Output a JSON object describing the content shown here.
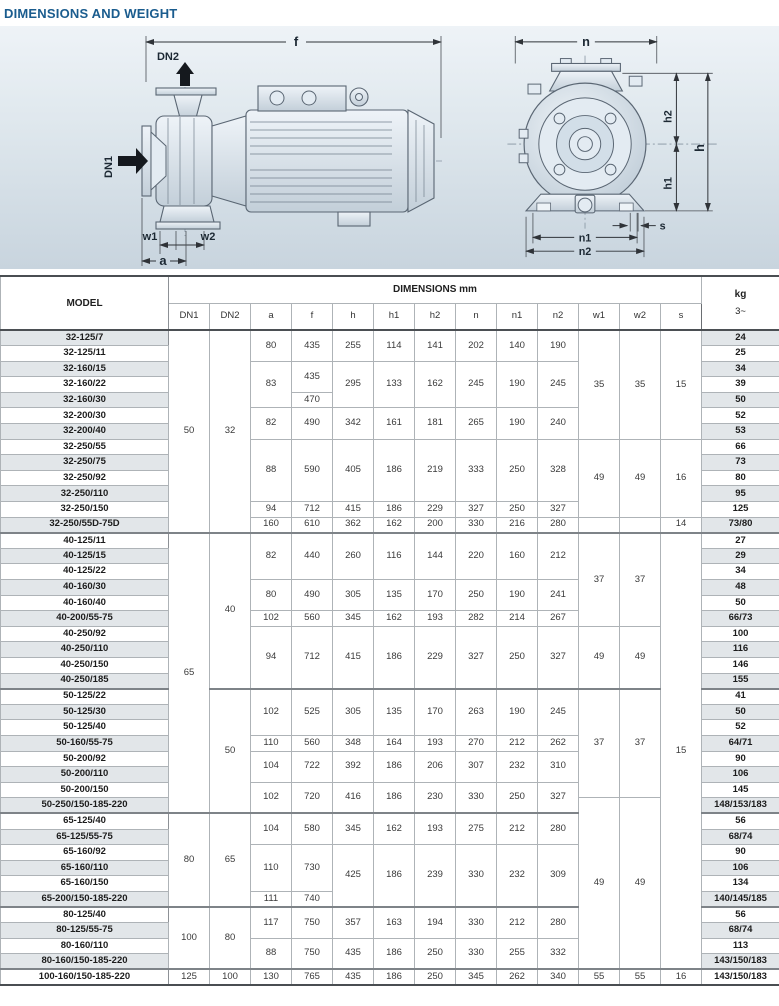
{
  "page": {
    "title": "DIMENSIONS AND WEIGHT"
  },
  "colors": {
    "title_accent": "#1a5c8e",
    "row_stripe": "#e2e6e9",
    "panel_top": "#eef3f7",
    "panel_bottom": "#c8d4de"
  },
  "diagram": {
    "side": {
      "f": "f",
      "DN2": "DN2",
      "DN1": "DN1",
      "w1": "w1",
      "w2": "w2",
      "a": "a"
    },
    "front": {
      "n": "n",
      "h2": "h2",
      "h": "h",
      "h1": "h1",
      "s": "s",
      "n1": "n1",
      "n2": "n2"
    }
  },
  "table": {
    "headers": {
      "model": "MODEL",
      "dimensions": "DIMENSIONS mm",
      "kg": "kg",
      "phase": "3~",
      "cols": [
        "DN1",
        "DN2",
        "a",
        "f",
        "h",
        "h1",
        "h2",
        "n",
        "n1",
        "n2",
        "w1",
        "w2",
        "s"
      ]
    },
    "rows": [
      {
        "model": "32-125/7",
        "kg": "24",
        "dims": [
          [
            "50",
            13
          ],
          [
            "32",
            13
          ],
          [
            "80",
            2
          ],
          [
            "435",
            2
          ],
          [
            "255",
            2
          ],
          [
            "114",
            2
          ],
          [
            "141",
            2
          ],
          [
            "202",
            2
          ],
          [
            "140",
            2
          ],
          [
            "190",
            2
          ],
          [
            "35",
            7
          ],
          [
            "35",
            7
          ],
          [
            "15",
            7
          ]
        ]
      },
      {
        "model": "32-125/11",
        "kg": "25",
        "dims": []
      },
      {
        "model": "32-160/15",
        "kg": "34",
        "dims": [
          [
            "83",
            3
          ],
          [
            "435",
            2
          ],
          [
            "295",
            3
          ],
          [
            "133",
            3
          ],
          [
            "162",
            3
          ],
          [
            "245",
            3
          ],
          [
            "190",
            3
          ],
          [
            "245",
            3
          ]
        ]
      },
      {
        "model": "32-160/22",
        "kg": "39",
        "dims": []
      },
      {
        "model": "32-160/30",
        "kg": "50",
        "dims": [
          [
            "470",
            1
          ]
        ]
      },
      {
        "model": "32-200/30",
        "kg": "52",
        "dims": [
          [
            "82",
            2
          ],
          [
            "490",
            2
          ],
          [
            "342",
            2
          ],
          [
            "161",
            2
          ],
          [
            "181",
            2
          ],
          [
            "265",
            2
          ],
          [
            "190",
            2
          ],
          [
            "240",
            2
          ]
        ]
      },
      {
        "model": "32-200/40",
        "kg": "53",
        "dims": []
      },
      {
        "model": "32-250/55",
        "kg": "66",
        "dims": [
          [
            "88",
            4
          ],
          [
            "590",
            4
          ],
          [
            "405",
            4
          ],
          [
            "186",
            4
          ],
          [
            "219",
            4
          ],
          [
            "333",
            4
          ],
          [
            "250",
            4
          ],
          [
            "328",
            4
          ],
          [
            "49",
            5
          ],
          [
            "49",
            5
          ],
          [
            "16",
            5
          ]
        ]
      },
      {
        "model": "32-250/75",
        "kg": "73",
        "dims": []
      },
      {
        "model": "32-250/92",
        "kg": "80",
        "dims": []
      },
      {
        "model": "32-250/110",
        "kg": "95",
        "dims": []
      },
      {
        "model": "32-250/150",
        "kg": "125",
        "dims": [
          [
            "94",
            1
          ],
          [
            "712",
            1
          ],
          [
            "415",
            1
          ],
          [
            "186",
            1
          ],
          [
            "229",
            1
          ],
          [
            "327",
            1
          ],
          [
            "250",
            1
          ],
          [
            "327",
            1
          ]
        ]
      },
      {
        "model": "32-250/55D-75D",
        "kg": "73/80",
        "dims": [
          [
            "160",
            1
          ],
          [
            "610",
            1
          ],
          [
            "362",
            1
          ],
          [
            "162",
            1
          ],
          [
            "200",
            1
          ],
          [
            "330",
            1
          ],
          [
            "216",
            1
          ],
          [
            "280",
            1
          ],
          [
            "",
            1
          ],
          [
            "",
            1
          ],
          [
            "14",
            1
          ]
        ]
      },
      {
        "model": "40-125/11",
        "kg": "27",
        "sep": true,
        "dims": [
          [
            "65",
            18
          ],
          [
            "40",
            10
          ],
          [
            "82",
            3
          ],
          [
            "440",
            3
          ],
          [
            "260",
            3
          ],
          [
            "116",
            3
          ],
          [
            "144",
            3
          ],
          [
            "220",
            3
          ],
          [
            "160",
            3
          ],
          [
            "212",
            3
          ],
          [
            "37",
            6
          ],
          [
            "37",
            6
          ],
          [
            "15",
            28
          ]
        ]
      },
      {
        "model": "40-125/15",
        "kg": "29",
        "dims": []
      },
      {
        "model": "40-125/22",
        "kg": "34",
        "dims": []
      },
      {
        "model": "40-160/30",
        "kg": "48",
        "dims": [
          [
            "80",
            2
          ],
          [
            "490",
            2
          ],
          [
            "305",
            2
          ],
          [
            "135",
            2
          ],
          [
            "170",
            2
          ],
          [
            "250",
            2
          ],
          [
            "190",
            2
          ],
          [
            "241",
            2
          ]
        ]
      },
      {
        "model": "40-160/40",
        "kg": "50",
        "dims": []
      },
      {
        "model": "40-200/55-75",
        "kg": "66/73",
        "dims": [
          [
            "102",
            1
          ],
          [
            "560",
            1
          ],
          [
            "345",
            1
          ],
          [
            "162",
            1
          ],
          [
            "193",
            1
          ],
          [
            "282",
            1
          ],
          [
            "214",
            1
          ],
          [
            "267",
            1
          ]
        ]
      },
      {
        "model": "40-250/92",
        "kg": "100",
        "dims": [
          [
            "94",
            4
          ],
          [
            "712",
            4
          ],
          [
            "415",
            4
          ],
          [
            "186",
            4
          ],
          [
            "229",
            4
          ],
          [
            "327",
            4
          ],
          [
            "250",
            4
          ],
          [
            "327",
            4
          ],
          [
            "49",
            4
          ],
          [
            "49",
            4
          ]
        ]
      },
      {
        "model": "40-250/110",
        "kg": "116",
        "dims": []
      },
      {
        "model": "40-250/150",
        "kg": "146",
        "dims": []
      },
      {
        "model": "40-250/185",
        "kg": "155",
        "dims": []
      },
      {
        "model": "50-125/22",
        "kg": "41",
        "sep": true,
        "dims": [
          [
            "50",
            8
          ],
          [
            "102",
            3
          ],
          [
            "525",
            3
          ],
          [
            "305",
            3
          ],
          [
            "135",
            3
          ],
          [
            "170",
            3
          ],
          [
            "263",
            3
          ],
          [
            "190",
            3
          ],
          [
            "245",
            3
          ],
          [
            "37",
            7
          ],
          [
            "37",
            7
          ]
        ]
      },
      {
        "model": "50-125/30",
        "kg": "50",
        "dims": []
      },
      {
        "model": "50-125/40",
        "kg": "52",
        "dims": []
      },
      {
        "model": "50-160/55-75",
        "kg": "64/71",
        "dims": [
          [
            "110",
            1
          ],
          [
            "560",
            1
          ],
          [
            "348",
            1
          ],
          [
            "164",
            1
          ],
          [
            "193",
            1
          ],
          [
            "270",
            1
          ],
          [
            "212",
            1
          ],
          [
            "262",
            1
          ]
        ]
      },
      {
        "model": "50-200/92",
        "kg": "90",
        "dims": [
          [
            "104",
            2
          ],
          [
            "722",
            2
          ],
          [
            "392",
            2
          ],
          [
            "186",
            2
          ],
          [
            "206",
            2
          ],
          [
            "307",
            2
          ],
          [
            "232",
            2
          ],
          [
            "310",
            2
          ]
        ]
      },
      {
        "model": "50-200/110",
        "kg": "106",
        "dims": []
      },
      {
        "model": "50-200/150",
        "kg": "145",
        "dims": [
          [
            "102",
            2
          ],
          [
            "720",
            2
          ],
          [
            "416",
            2
          ],
          [
            "186",
            2
          ],
          [
            "230",
            2
          ],
          [
            "330",
            2
          ],
          [
            "250",
            2
          ],
          [
            "327",
            2
          ]
        ]
      },
      {
        "model": "50-250/150-185-220",
        "kg": "148/153/183",
        "dims": [
          [
            "49",
            11
          ],
          [
            "49",
            11
          ]
        ]
      },
      {
        "model": "65-125/40",
        "kg": "56",
        "sep": true,
        "dims": [
          [
            "80",
            6
          ],
          [
            "65",
            6
          ],
          [
            "104",
            2
          ],
          [
            "580",
            2
          ],
          [
            "345",
            2
          ],
          [
            "162",
            2
          ],
          [
            "193",
            2
          ],
          [
            "275",
            2
          ],
          [
            "212",
            2
          ],
          [
            "280",
            2
          ]
        ]
      },
      {
        "model": "65-125/55-75",
        "kg": "68/74",
        "dims": []
      },
      {
        "model": "65-160/92",
        "kg": "90",
        "dims": [
          [
            "110",
            3
          ],
          [
            "730",
            3
          ],
          [
            "425",
            4
          ],
          [
            "186",
            4
          ],
          [
            "239",
            4
          ],
          [
            "330",
            4
          ],
          [
            "232",
            4
          ],
          [
            "309",
            4
          ]
        ]
      },
      {
        "model": "65-160/110",
        "kg": "106",
        "dims": []
      },
      {
        "model": "65-160/150",
        "kg": "134",
        "dims": []
      },
      {
        "model": "65-200/150-185-220",
        "kg": "140/145/185",
        "dims": [
          [
            "111",
            1
          ],
          [
            "740",
            1
          ]
        ]
      },
      {
        "model": "80-125/40",
        "kg": "56",
        "sep": true,
        "dims": [
          [
            "100",
            4
          ],
          [
            "80",
            4
          ],
          [
            "117",
            2
          ],
          [
            "750",
            2
          ],
          [
            "357",
            2
          ],
          [
            "163",
            2
          ],
          [
            "194",
            2
          ],
          [
            "330",
            2
          ],
          [
            "212",
            2
          ],
          [
            "280",
            2
          ]
        ]
      },
      {
        "model": "80-125/55-75",
        "kg": "68/74",
        "dims": []
      },
      {
        "model": "80-160/110",
        "kg": "113",
        "dims": [
          [
            "88",
            2
          ],
          [
            "750",
            2
          ],
          [
            "435",
            2
          ],
          [
            "186",
            2
          ],
          [
            "250",
            2
          ],
          [
            "330",
            2
          ],
          [
            "255",
            2
          ],
          [
            "332",
            2
          ]
        ]
      },
      {
        "model": "80-160/150-185-220",
        "kg": "143/150/183",
        "dims": []
      },
      {
        "model": "100-160/150-185-220",
        "kg": "143/150/183",
        "sep": true,
        "dims": [
          [
            "125",
            1
          ],
          [
            "100",
            1
          ],
          [
            "130",
            1
          ],
          [
            "765",
            1
          ],
          [
            "435",
            1
          ],
          [
            "186",
            1
          ],
          [
            "250",
            1
          ],
          [
            "345",
            1
          ],
          [
            "262",
            1
          ],
          [
            "340",
            1
          ],
          [
            "55",
            1
          ],
          [
            "55",
            1
          ],
          [
            "16",
            1
          ]
        ]
      }
    ]
  }
}
